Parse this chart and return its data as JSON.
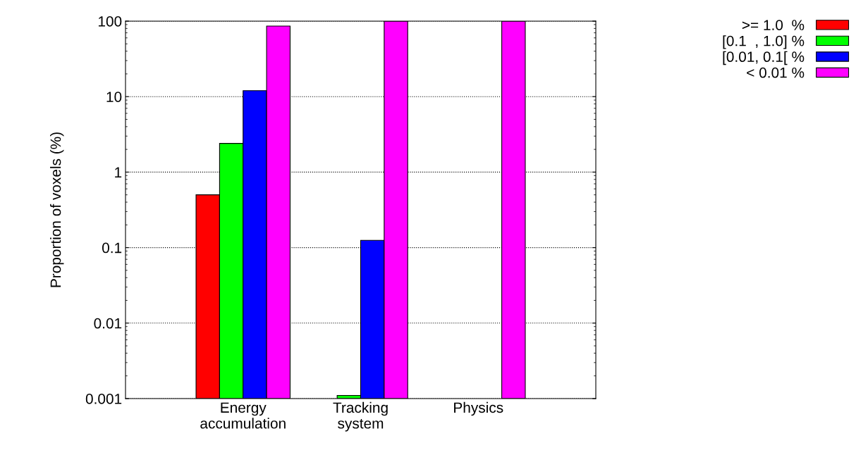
{
  "chart_data": {
    "type": "bar",
    "ylabel": "Proportion of voxels (%)",
    "categories": [
      "Energy\naccumulation",
      "Tracking\nsystem",
      "Physics"
    ],
    "series": [
      {
        "name": ">= 1.0  %",
        "color": "#ff0000",
        "values": [
          0.5,
          null,
          null
        ]
      },
      {
        "name": "[0.1  , 1.0] %",
        "color": "#00ff00",
        "values": [
          2.4,
          0.0011,
          null
        ]
      },
      {
        "name": "[0.01, 0.1[ %",
        "color": "#0000ff",
        "values": [
          12,
          0.125,
          null
        ]
      },
      {
        "name": "< 0.01 %",
        "color": "#ff00ff",
        "values": [
          86,
          100,
          100
        ]
      }
    ],
    "log": "y",
    "ylim": [
      0.001,
      100
    ],
    "yticks": [
      0.001,
      0.01,
      0.1,
      1,
      10,
      100
    ],
    "grid": "y",
    "legend": "top right"
  }
}
